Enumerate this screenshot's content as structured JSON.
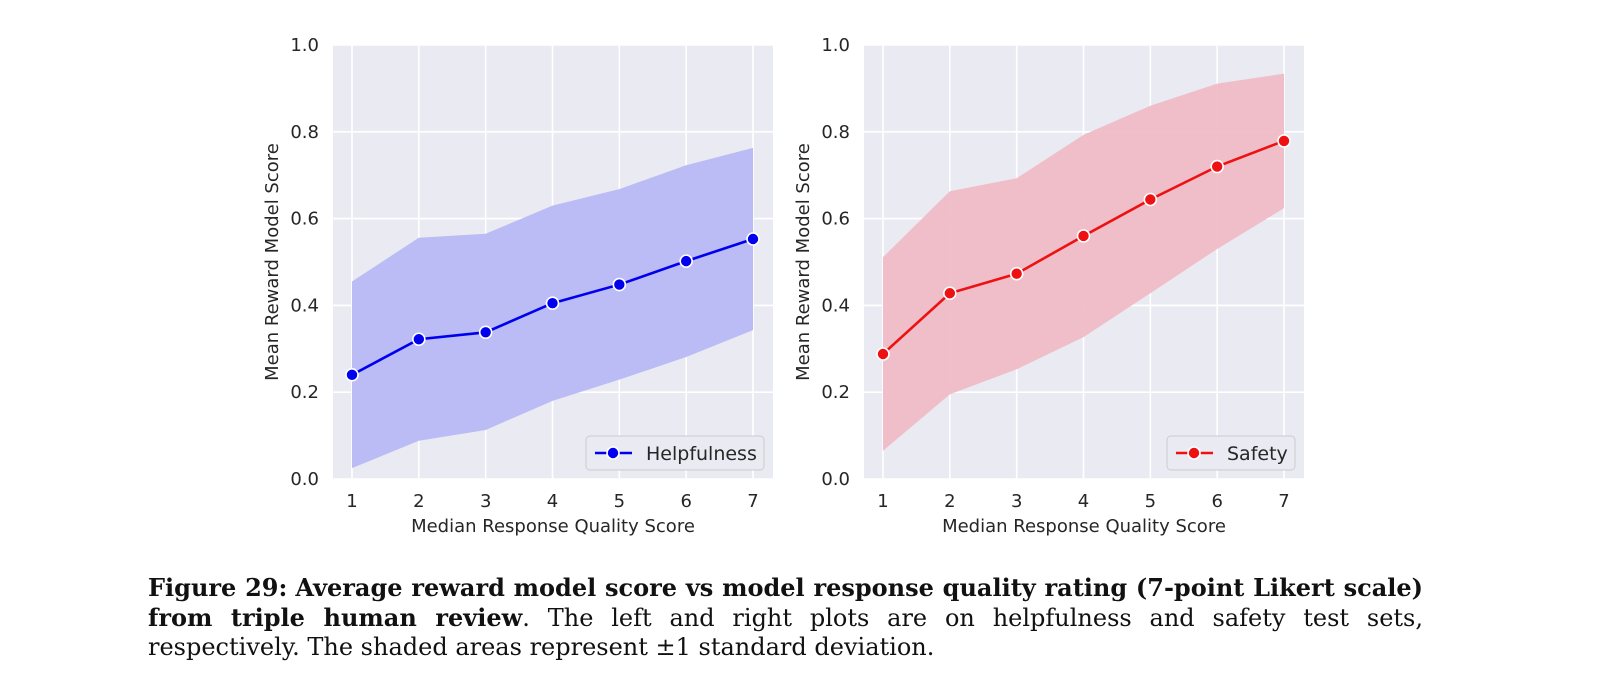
{
  "chart_data": [
    {
      "type": "line",
      "x": [
        1,
        2,
        3,
        4,
        5,
        6,
        7
      ],
      "xlabel": "Median Response Quality Score",
      "ylabel": "Mean Reward Model Score",
      "xticks": [
        "1",
        "2",
        "3",
        "4",
        "5",
        "6",
        "7"
      ],
      "yticks": [
        "0.0",
        "0.2",
        "0.4",
        "0.6",
        "0.8",
        "1.0"
      ],
      "ylim": [
        0.0,
        1.0
      ],
      "grid": true,
      "legend_position": "bottom-right",
      "series": [
        {
          "name": "Helpfulness",
          "color": "#0000ee",
          "band_color": "#b8b8f4",
          "values": [
            0.24,
            0.322,
            0.338,
            0.405,
            0.448,
            0.502,
            0.553
          ],
          "upper": [
            0.455,
            0.556,
            0.565,
            0.63,
            0.668,
            0.723,
            0.763
          ],
          "lower": [
            0.025,
            0.088,
            0.113,
            0.18,
            0.229,
            0.281,
            0.343
          ]
        }
      ]
    },
    {
      "type": "line",
      "x": [
        1,
        2,
        3,
        4,
        5,
        6,
        7
      ],
      "xlabel": "Median Response Quality Score",
      "ylabel": "Mean Reward Model Score",
      "xticks": [
        "1",
        "2",
        "3",
        "4",
        "5",
        "6",
        "7"
      ],
      "yticks": [
        "0.0",
        "0.2",
        "0.4",
        "0.6",
        "0.8",
        "1.0"
      ],
      "ylim": [
        0.0,
        1.0
      ],
      "grid": true,
      "legend_position": "bottom-right",
      "series": [
        {
          "name": "Safety",
          "color": "#ee1111",
          "band_color": "#efbcc6",
          "values": [
            0.288,
            0.428,
            0.473,
            0.56,
            0.644,
            0.72,
            0.779
          ],
          "upper": [
            0.511,
            0.663,
            0.693,
            0.793,
            0.86,
            0.911,
            0.934
          ],
          "lower": [
            0.065,
            0.195,
            0.253,
            0.327,
            0.428,
            0.53,
            0.624
          ]
        }
      ]
    }
  ],
  "caption": {
    "label": "Figure 29:",
    "bold_text": "Average reward model score vs model response quality rating (7-point Likert scale) from triple human review",
    "body_text": ". The left and right plots are on helpfulness and safety test sets, respectively. The shaded areas represent ±1 standard deviation."
  }
}
